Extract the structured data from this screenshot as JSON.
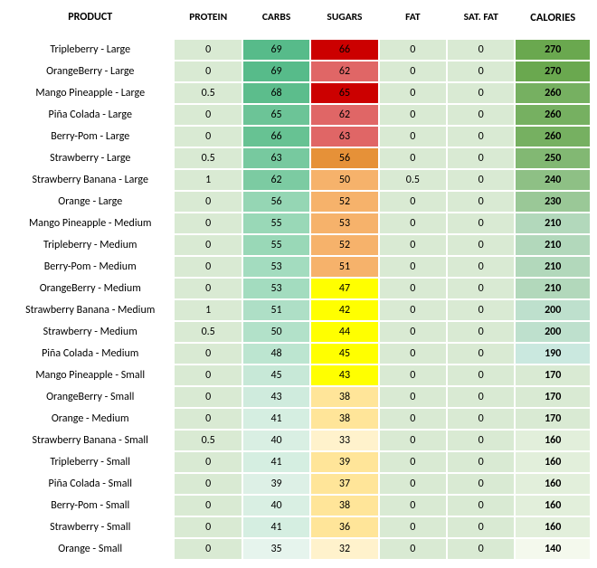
{
  "headers": [
    "PRODUCT",
    "PROTEIN",
    "CARBS",
    "SUGARS",
    "FAT",
    "SAT. FAT",
    "CALORIES"
  ],
  "colors": {
    "protein_fill": "#d9ead3",
    "fat_fill": "#d9ead3",
    "satfat_fill": "#d9ead3",
    "carbs_scale_low": "#d9ead3",
    "carbs_scale_high": "#5aa84f",
    "sugars": {
      "red": "#e06666",
      "red_dark": "#cc0000",
      "orange": "#f6b26b",
      "orange_dark": "#e69138",
      "yellow": "#ffff00",
      "tan": "#ffe599",
      "tan_light": "#fff2cc"
    },
    "cal_scale_low": "#d9ead3",
    "cal_scale_high": "#6aa84f"
  },
  "rows": [
    {
      "product": "Tripleberry - Large",
      "protein": "0",
      "carbs": "69",
      "sugars": "66",
      "fat": "0",
      "satfat": "0",
      "cal": "270",
      "carbs_bg": "#57bb8a",
      "sugars_bg": "#cc0000",
      "cal_bg": "#6aa84f"
    },
    {
      "product": "OrangeBerry - Large",
      "protein": "0",
      "carbs": "69",
      "sugars": "62",
      "fat": "0",
      "satfat": "0",
      "cal": "270",
      "carbs_bg": "#57bb8a",
      "sugars_bg": "#e06666",
      "cal_bg": "#6aa84f"
    },
    {
      "product": "Mango Pineapple - Large",
      "protein": "0.5",
      "carbs": "68",
      "sugars": "65",
      "fat": "0",
      "satfat": "0",
      "cal": "260",
      "carbs_bg": "#5cbd8c",
      "sugars_bg": "#cc0000",
      "cal_bg": "#76b061"
    },
    {
      "product": "Piña Colada - Large",
      "protein": "0",
      "carbs": "65",
      "sugars": "62",
      "fat": "0",
      "satfat": "0",
      "cal": "260",
      "carbs_bg": "#6cc497",
      "sugars_bg": "#e06666",
      "cal_bg": "#76b061"
    },
    {
      "product": "Berry-Pom - Large",
      "protein": "0",
      "carbs": "66",
      "sugars": "63",
      "fat": "0",
      "satfat": "0",
      "cal": "260",
      "carbs_bg": "#67c293",
      "sugars_bg": "#e06666",
      "cal_bg": "#76b061"
    },
    {
      "product": "Strawberry - Large",
      "protein": "0.5",
      "carbs": "63",
      "sugars": "56",
      "fat": "0",
      "satfat": "0",
      "cal": "250",
      "carbs_bg": "#77c99f",
      "sugars_bg": "#e69138",
      "cal_bg": "#82b873"
    },
    {
      "product": "Strawberry Banana - Large",
      "protein": "1",
      "carbs": "62",
      "sugars": "50",
      "fat": "0.5",
      "satfat": "0",
      "cal": "240",
      "carbs_bg": "#7ccba2",
      "sugars_bg": "#f6b26b",
      "cal_bg": "#8ec085"
    },
    {
      "product": "Orange - Large",
      "protein": "0",
      "carbs": "56",
      "sugars": "52",
      "fat": "0",
      "satfat": "0",
      "cal": "230",
      "carbs_bg": "#95d6b4",
      "sugars_bg": "#f6b26b",
      "cal_bg": "#9ac897"
    },
    {
      "product": "Mango Pineapple - Medium",
      "protein": "0",
      "carbs": "55",
      "sugars": "53",
      "fat": "0",
      "satfat": "0",
      "cal": "210",
      "carbs_bg": "#99d8b7",
      "sugars_bg": "#f6b26b",
      "cal_bg": "#b2d8bb"
    },
    {
      "product": "Tripleberry - Medium",
      "protein": "0",
      "carbs": "55",
      "sugars": "52",
      "fat": "0",
      "satfat": "0",
      "cal": "210",
      "carbs_bg": "#99d8b7",
      "sugars_bg": "#f6b26b",
      "cal_bg": "#b2d8bb"
    },
    {
      "product": "Berry-Pom - Medium",
      "protein": "0",
      "carbs": "53",
      "sugars": "51",
      "fat": "0",
      "satfat": "0",
      "cal": "210",
      "carbs_bg": "#a3dcbf",
      "sugars_bg": "#f6b26b",
      "cal_bg": "#b2d8bb"
    },
    {
      "product": "OrangeBerry - Medium",
      "protein": "0",
      "carbs": "53",
      "sugars": "47",
      "fat": "0",
      "satfat": "0",
      "cal": "210",
      "carbs_bg": "#a3dcbf",
      "sugars_bg": "#ffff00",
      "cal_bg": "#b2d8bb"
    },
    {
      "product": "Strawberry Banana - Medium",
      "protein": "1",
      "carbs": "51",
      "sugars": "42",
      "fat": "0",
      "satfat": "0",
      "cal": "200",
      "carbs_bg": "#aedfc6",
      "sugars_bg": "#ffff00",
      "cal_bg": "#bee0cd"
    },
    {
      "product": "Strawberry - Medium",
      "protein": "0.5",
      "carbs": "50",
      "sugars": "44",
      "fat": "0",
      "satfat": "0",
      "cal": "200",
      "carbs_bg": "#b2e1c9",
      "sugars_bg": "#ffff00",
      "cal_bg": "#bee0cd"
    },
    {
      "product": "Piña Colada - Medium",
      "protein": "0",
      "carbs": "48",
      "sugars": "45",
      "fat": "0",
      "satfat": "0",
      "cal": "190",
      "carbs_bg": "#bce5d0",
      "sugars_bg": "#ffff00",
      "cal_bg": "#cae8df"
    },
    {
      "product": "Mango Pineapple - Small",
      "protein": "0",
      "carbs": "45",
      "sugars": "43",
      "fat": "0",
      "satfat": "0",
      "cal": "170",
      "carbs_bg": "#c7e8d7",
      "sugars_bg": "#ffff00",
      "cal_bg": "#d9ead3"
    },
    {
      "product": "OrangeBerry - Small",
      "protein": "0",
      "carbs": "43",
      "sugars": "38",
      "fat": "0",
      "satfat": "0",
      "cal": "170",
      "carbs_bg": "#cfebdd",
      "sugars_bg": "#ffe599",
      "cal_bg": "#d9ead3"
    },
    {
      "product": "Orange - Medium",
      "protein": "0",
      "carbs": "41",
      "sugars": "38",
      "fat": "0",
      "satfat": "0",
      "cal": "170",
      "carbs_bg": "#d5eee1",
      "sugars_bg": "#ffe599",
      "cal_bg": "#d9ead3"
    },
    {
      "product": "Strawberry Banana - Small",
      "protein": "0.5",
      "carbs": "40",
      "sugars": "33",
      "fat": "0",
      "satfat": "0",
      "cal": "160",
      "carbs_bg": "#d9efe3",
      "sugars_bg": "#fff2cc",
      "cal_bg": "#e2efdb"
    },
    {
      "product": "Tripleberry - Small",
      "protein": "0",
      "carbs": "41",
      "sugars": "39",
      "fat": "0",
      "satfat": "0",
      "cal": "160",
      "carbs_bg": "#d5eee1",
      "sugars_bg": "#ffe599",
      "cal_bg": "#e2efdb"
    },
    {
      "product": "Piña Colada - Small",
      "protein": "0",
      "carbs": "39",
      "sugars": "37",
      "fat": "0",
      "satfat": "0",
      "cal": "160",
      "carbs_bg": "#ddf0e6",
      "sugars_bg": "#ffe599",
      "cal_bg": "#e2efdb"
    },
    {
      "product": "Berry-Pom - Small",
      "protein": "0",
      "carbs": "40",
      "sugars": "38",
      "fat": "0",
      "satfat": "0",
      "cal": "160",
      "carbs_bg": "#d9efe3",
      "sugars_bg": "#ffe599",
      "cal_bg": "#e2efdb"
    },
    {
      "product": "Strawberry - Small",
      "protein": "0",
      "carbs": "41",
      "sugars": "36",
      "fat": "0",
      "satfat": "0",
      "cal": "160",
      "carbs_bg": "#d5eee1",
      "sugars_bg": "#ffe599",
      "cal_bg": "#e2efdb"
    },
    {
      "product": "Orange - Small",
      "protein": "0",
      "carbs": "35",
      "sugars": "32",
      "fat": "0",
      "satfat": "0",
      "cal": "140",
      "carbs_bg": "#e6f4ed",
      "sugars_bg": "#fff2cc",
      "cal_bg": "#f4f9ed"
    }
  ]
}
